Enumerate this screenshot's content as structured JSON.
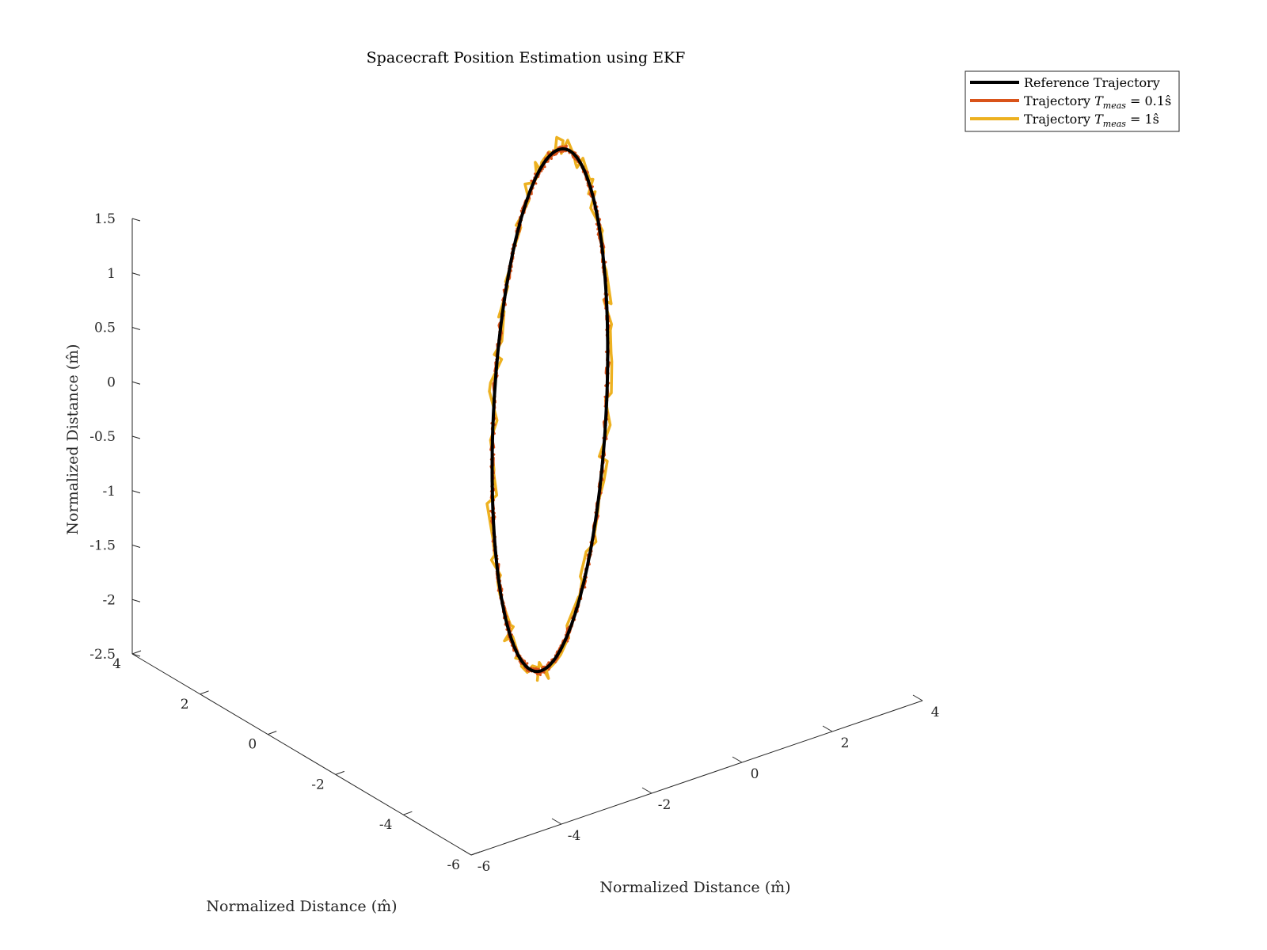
{
  "chart_data": {
    "type": "line",
    "projection": "3d",
    "title": "Spacecraft Position Estimation using EKF",
    "xlabel": "Normalized Distance (m̂)",
    "ylabel": "Normalized Distance (m̂)",
    "zlabel": "Normalized Distance (m̂)",
    "xlim": [
      -6,
      4
    ],
    "ylim": [
      -6,
      4
    ],
    "zlim": [
      -2.5,
      1.5
    ],
    "xticks": [
      "-6",
      "-4",
      "-2",
      "0",
      "2",
      "4"
    ],
    "yticks": [
      "-6",
      "-4",
      "-2",
      "0",
      "2",
      "4"
    ],
    "zticks": [
      "-2.5",
      "-2",
      "-1.5",
      "-1",
      "-0.5",
      "0",
      "0.5",
      "1",
      "1.5"
    ],
    "grid": false,
    "legend_position": "top-right",
    "series": [
      {
        "name": "Reference Trajectory",
        "color": "#000000",
        "line_width": 4,
        "orbit": {
          "center": [
            0.1,
            -0.2,
            -0.35
          ],
          "u": [
            2.6,
            1.96,
            0.85
          ],
          "v": [
            -0.29,
            0.42,
            1.77
          ],
          "samples": 360
        },
        "noise": 0
      },
      {
        "name": "Trajectory T_meas = 0.1ŝ",
        "legend_main": "Trajectory ",
        "legend_math": "T",
        "legend_sub": "meas",
        "legend_tail": " = 0.1ŝ",
        "color": "#D95319",
        "line_width": 3,
        "orbit": {
          "center": [
            0.1,
            -0.2,
            -0.35
          ],
          "u": [
            2.6,
            1.96,
            0.85
          ],
          "v": [
            -0.29,
            0.42,
            1.77
          ],
          "samples": 900
        },
        "noise": 0.03
      },
      {
        "name": "Trajectory T_meas = 1ŝ",
        "legend_main": "Trajectory ",
        "legend_math": "T",
        "legend_sub": "meas",
        "legend_tail": " = 1ŝ",
        "color": "#EDB120",
        "line_width": 3.5,
        "orbit": {
          "center": [
            0.1,
            -0.2,
            -0.35
          ],
          "u": [
            2.6,
            1.96,
            0.85
          ],
          "v": [
            -0.29,
            0.42,
            1.77
          ],
          "samples": 100
        },
        "noise": 0.1
      }
    ]
  }
}
